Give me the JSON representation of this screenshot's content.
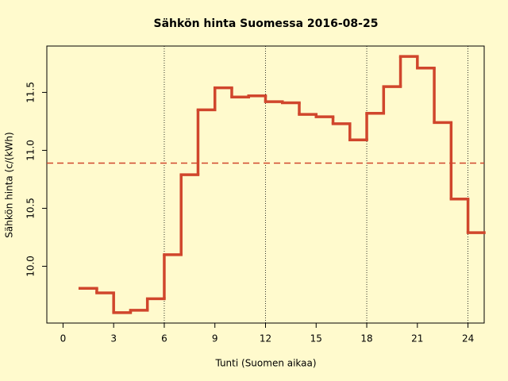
{
  "chart_data": {
    "type": "step",
    "title": "Sähkön hinta Suomessa 2016-08-25",
    "x_label": "Tunti (Suomen aikaa)",
    "y_label": "Sähkön hinta (c/(kWh)",
    "x": [
      1,
      2,
      3,
      4,
      5,
      6,
      7,
      8,
      9,
      10,
      11,
      12,
      13,
      14,
      15,
      16,
      17,
      18,
      19,
      20,
      21,
      22,
      23,
      24
    ],
    "values": [
      9.81,
      9.77,
      9.6,
      9.62,
      9.72,
      10.1,
      10.79,
      11.35,
      11.54,
      11.46,
      11.47,
      11.42,
      11.41,
      11.31,
      11.29,
      11.23,
      11.09,
      11.32,
      11.55,
      11.81,
      11.71,
      11.24,
      10.58,
      10.29
    ],
    "color": "#d0462c",
    "mean_line": 10.89,
    "mean_color": "#d0462c",
    "vlines": [
      6,
      12,
      18,
      24
    ],
    "xlim": [
      -0.96,
      24.96
    ],
    "ylim": [
      9.51,
      11.9
    ],
    "xticks": [
      0,
      3,
      6,
      9,
      12,
      15,
      18,
      21,
      24
    ],
    "yticks": [
      {
        "value": 10.0,
        "label": "10.0"
      },
      10.5,
      {
        "value": 11.0,
        "label": "11.0"
      },
      11.5
    ]
  }
}
